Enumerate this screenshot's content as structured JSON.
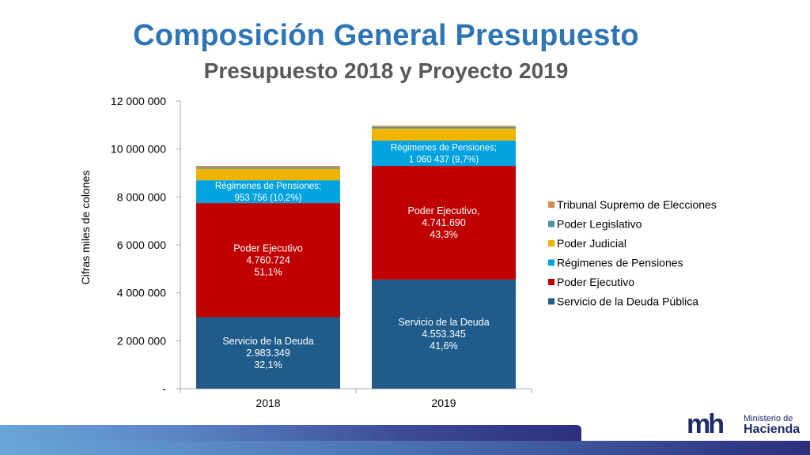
{
  "header": {
    "title": "Composición General Presupuesto",
    "subtitle": "Presupuesto 2018 y Proyecto 2019"
  },
  "logo": {
    "mark": "mh",
    "line1": "Ministerio de",
    "line2": "Hacienda"
  },
  "colors": {
    "title": "#2e75b6",
    "subtitle": "#595959",
    "servicio_deuda": "#1f5c8b",
    "poder_ejecutivo": "#c00000",
    "regimenes_pensiones": "#00a2e0",
    "poder_judicial": "#f0b400",
    "poder_legislativo": "#4696a8",
    "tribunal": "#d98c4c"
  },
  "chart_data": {
    "type": "bar",
    "stacked": true,
    "categories": [
      "2018",
      "2019"
    ],
    "ylabel": "Cifras miles de colones",
    "ylim": [
      0,
      12000000
    ],
    "yticks": [
      {
        "value": 0,
        "label": "-"
      },
      {
        "value": 2000000,
        "label": "2 000 000"
      },
      {
        "value": 4000000,
        "label": "4 000 000"
      },
      {
        "value": 6000000,
        "label": "6 000 000"
      },
      {
        "value": 8000000,
        "label": "8 000 000"
      },
      {
        "value": 10000000,
        "label": "10 000 000"
      },
      {
        "value": 12000000,
        "label": "12 000 000"
      }
    ],
    "legend_position": "right",
    "series": [
      {
        "name": "Servicio de la Deuda Pública",
        "color": "#1f5c8b",
        "values": [
          2983349,
          4553345
        ],
        "labels": [
          [
            "Servicio de la Deuda",
            "2.983.349",
            "32,1%"
          ],
          [
            "Servicio de la Deuda",
            "4.553.345",
            "41,6%"
          ]
        ]
      },
      {
        "name": "Poder Ejecutivo",
        "color": "#c00000",
        "values": [
          4760724,
          4741690
        ],
        "labels": [
          [
            "Poder Ejecutivo",
            "4.760.724",
            "51,1%"
          ],
          [
            "Poder Ejecutivo,",
            "4.741.690",
            "43,3%"
          ]
        ]
      },
      {
        "name": "Régimenes de Pensiones",
        "color": "#00a2e0",
        "values": [
          953756,
          1060437
        ],
        "labels": [
          [
            "Régimenes de Pensiones;",
            "953 756  (10,2%)"
          ],
          [
            "Régimenes de Pensiones;",
            "1 060 437  (9,7%)"
          ]
        ]
      },
      {
        "name": "Poder Judicial",
        "color": "#f0b400",
        "values": [
          480000,
          500000
        ],
        "labels": [
          [],
          []
        ]
      },
      {
        "name": "Poder Legislativo",
        "color": "#4696a8",
        "values": [
          60000,
          60000
        ],
        "labels": [
          [],
          []
        ]
      },
      {
        "name": "Tribunal Supremo de Elecciones",
        "color": "#d98c4c",
        "values": [
          60000,
          60000
        ],
        "labels": [
          [],
          []
        ]
      }
    ]
  }
}
